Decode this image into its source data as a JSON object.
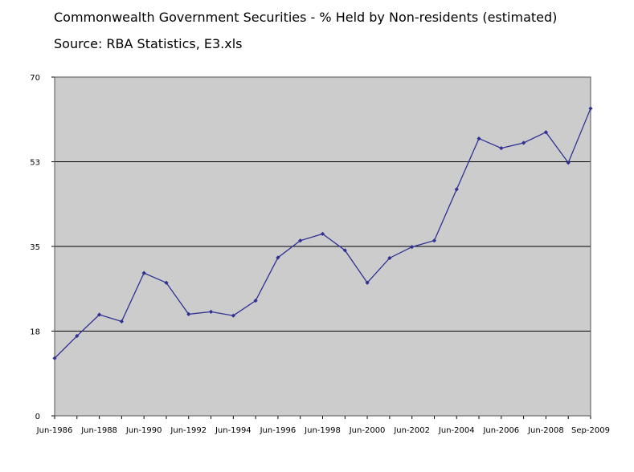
{
  "chart_data": {
    "type": "line",
    "title": "Commonwealth Government Securities - % Held by Non-residents (estimated)",
    "subtitle": "Source: RBA Statistics, E3.xls",
    "xlabel": "",
    "ylabel": "",
    "ylim": [
      0,
      70
    ],
    "yticks": [
      "0",
      "18",
      "35",
      "53",
      "70"
    ],
    "ytick_values": [
      0,
      17.5,
      35,
      52.5,
      70
    ],
    "xtick_labels": [
      "Jun-1986",
      "Jun-1988",
      "Jun-1990",
      "Jun-1992",
      "Jun-1994",
      "Jun-1996",
      "Jun-1998",
      "Jun-2000",
      "Jun-2002",
      "Jun-2004",
      "Jun-2006",
      "Jun-2008",
      "Sep-2009"
    ],
    "grid": "horizontal",
    "legend": "none",
    "series": [
      {
        "color": "#2e3192",
        "values": [
          11.9,
          16.5,
          20.9,
          19.5,
          29.5,
          27.5,
          21.0,
          21.5,
          20.7,
          23.8,
          32.7,
          36.2,
          37.6,
          34.2,
          27.5,
          32.6,
          34.9,
          36.2,
          46.8,
          57.3,
          55.3,
          56.4,
          58.6,
          52.3,
          63.5
        ]
      }
    ]
  }
}
